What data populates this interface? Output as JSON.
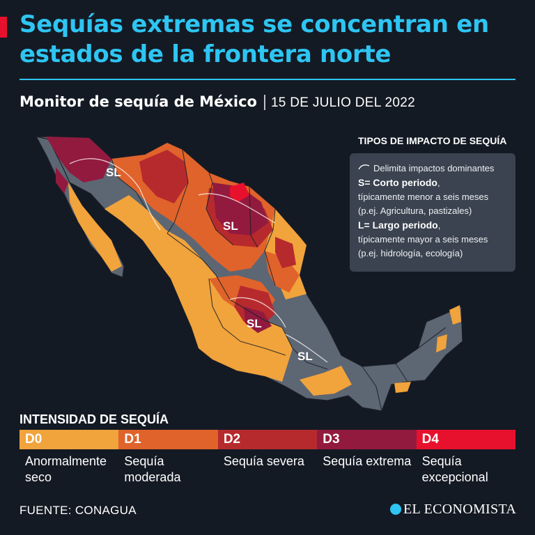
{
  "title": "Sequías extremas se concentran en estados de la frontera norte",
  "subtitle": {
    "monitor": "Monitor de sequía de México",
    "separator": "|",
    "date": "15 DE JULIO DEL 2022"
  },
  "impact_box": {
    "heading": "TIPOS DE IMPACTO DE SEQUÍA",
    "line1": "Delimita impactos dominantes",
    "short_label": "S= Corto periodo",
    "short_suffix": ",",
    "short_desc": "típicamente menor a seis meses",
    "short_example": "(p.ej. Agricultura, pastizales)",
    "long_label": "L= Largo periodo",
    "long_suffix": ",",
    "long_desc": "típicamente mayor a seis meses",
    "long_example": "(p.ej. hidrología, ecología)"
  },
  "map_labels": [
    "SL",
    "SL",
    "SL",
    "SL"
  ],
  "legend": {
    "title": "INTENSIDAD DE SEQUÍA",
    "items": [
      {
        "code": "D0",
        "label": "Anormalmente seco",
        "color": "#f1a33c"
      },
      {
        "code": "D1",
        "label": "Sequía moderada",
        "color": "#e0632b"
      },
      {
        "code": "D2",
        "label": "Sequía severa",
        "color": "#b62a2d"
      },
      {
        "code": "D3",
        "label": "Sequía extrema",
        "color": "#921a3e"
      },
      {
        "code": "D4",
        "label": "Sequía excepcional",
        "color": "#e8112d"
      }
    ]
  },
  "source": "FUENTE: CONAGUA",
  "brand": "EL ECONOMISTA",
  "colors": {
    "background": "#141a24",
    "accent": "#2ec5f2",
    "no_drought": "#5d6673",
    "info_box": "#3b4350"
  }
}
